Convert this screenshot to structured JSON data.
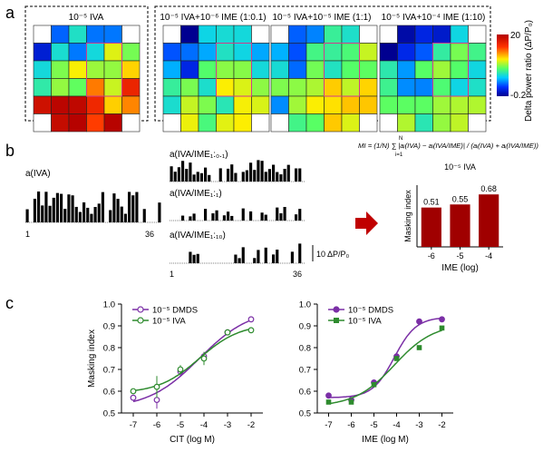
{
  "panel_letters": [
    "a",
    "b",
    "c"
  ],
  "panel_a": {
    "heatmaps": [
      {
        "title": "10⁻⁵ IVA"
      },
      {
        "title": "10⁻⁵ IVA+10⁻⁶ IME (1:0.1)"
      },
      {
        "title": "10⁻⁵ IVA+10⁻⁵ IME (1:1)"
      },
      {
        "title": "10⁻⁵ IVA+10⁻⁴ IME (1:10)"
      }
    ],
    "colorbar": {
      "max_label": "20",
      "min_label": "-0.2",
      "label": "Delta power ratio (ΔP/P₀)"
    },
    "colors": {
      "high": "#b30000",
      "mid": "#ffff00",
      "low": "#000090",
      "outline": "#d03b8c"
    }
  },
  "panel_b": {
    "traces": [
      {
        "label": "a(IVA)"
      },
      {
        "label": "a(IVA/IME₁:₀.₁)"
      },
      {
        "label": "a(IVA/IME₁:₁)"
      },
      {
        "label": "a(IVA/IME₁:₁₀)"
      }
    ],
    "axis_start": "1",
    "axis_end": "36",
    "scale_label": "10 ΔP/P₀",
    "formula": "MI = (1/N) ∑ |aᵢ(IVA) − aᵢ(IVA/IME)| / (aᵢ(IVA) + aᵢ(IVA/IME))",
    "formula_sum_lower": "i=1",
    "formula_sum_upper": "N",
    "arrow_color": "#c00000"
  },
  "chart_data": [
    {
      "type": "bar",
      "title": "10⁻⁵ IVA",
      "categories": [
        "-6",
        "-5",
        "-4"
      ],
      "values": [
        0.51,
        0.55,
        0.68
      ],
      "value_labels": [
        "0.51",
        "0.55",
        "0.68"
      ],
      "xlabel": "IME (log)",
      "ylabel": "Masking index",
      "ylim": [
        0,
        0.8
      ],
      "bar_color": "#a00000"
    },
    {
      "type": "line",
      "xlabel": "CIT (log M)",
      "ylabel": "Masking index",
      "xlim": [
        -7.5,
        -1.5
      ],
      "ylim": [
        0.5,
        1.0
      ],
      "xticks": [
        -7,
        -6,
        -5,
        -4,
        -3,
        -2
      ],
      "xtick_labels": [
        "-7",
        "-6",
        "-5",
        "-4",
        "-3",
        "-2"
      ],
      "yticks": [
        0.5,
        0.6,
        0.7,
        0.8,
        0.9,
        1.0
      ],
      "ytick_labels": [
        "0.5",
        "0.6",
        "0.7",
        "0.8",
        "0.9",
        "1.0"
      ],
      "legend": "top-left",
      "series": [
        {
          "name": "10⁻⁵ DMDS",
          "color": "#7b2fa6",
          "marker": "circle-open",
          "x": [
            -7,
            -6,
            -5,
            -4,
            -3,
            -2
          ],
          "y": [
            0.57,
            0.56,
            0.69,
            0.76,
            0.87,
            0.93
          ],
          "err": [
            0.01,
            0.04,
            0.02,
            0.02,
            0.01,
            0.01
          ]
        },
        {
          "name": "10⁻⁵ IVA",
          "color": "#2e8b2e",
          "marker": "circle-open",
          "x": [
            -7,
            -6,
            -5,
            -4,
            -3,
            -2
          ],
          "y": [
            0.6,
            0.62,
            0.7,
            0.75,
            0.87,
            0.88
          ],
          "err": [
            0.01,
            0.05,
            0.02,
            0.03,
            0.01,
            0.01
          ]
        }
      ]
    },
    {
      "type": "line",
      "xlabel": "IME (log M)",
      "ylabel": "",
      "xlim": [
        -7.5,
        -1.5
      ],
      "ylim": [
        0.5,
        1.0
      ],
      "xticks": [
        -7,
        -6,
        -5,
        -4,
        -3,
        -2
      ],
      "xtick_labels": [
        "-7",
        "-6",
        "-5",
        "-4",
        "-3",
        "-2"
      ],
      "yticks": [
        0.5,
        0.6,
        0.7,
        0.8,
        0.9,
        1.0
      ],
      "ytick_labels": [
        "0.5",
        "0.6",
        "0.7",
        "0.8",
        "0.9",
        "1.0"
      ],
      "legend": "top-left",
      "series": [
        {
          "name": "10⁻⁵ DMDS",
          "color": "#7b2fa6",
          "marker": "circle-filled",
          "x": [
            -7,
            -6,
            -5,
            -4,
            -3,
            -2
          ],
          "y": [
            0.58,
            0.56,
            0.64,
            0.76,
            0.92,
            0.93
          ],
          "err": [
            0.01,
            0.01,
            0.01,
            0.01,
            0.01,
            0.01
          ]
        },
        {
          "name": "10⁻⁵ IVA",
          "color": "#2e8b2e",
          "marker": "square-filled",
          "x": [
            -7,
            -6,
            -5,
            -4,
            -3,
            -2
          ],
          "y": [
            0.55,
            0.55,
            0.63,
            0.75,
            0.8,
            0.89
          ],
          "err": [
            0.01,
            0.01,
            0.01,
            0.01,
            0.01,
            0.01
          ]
        }
      ]
    }
  ]
}
